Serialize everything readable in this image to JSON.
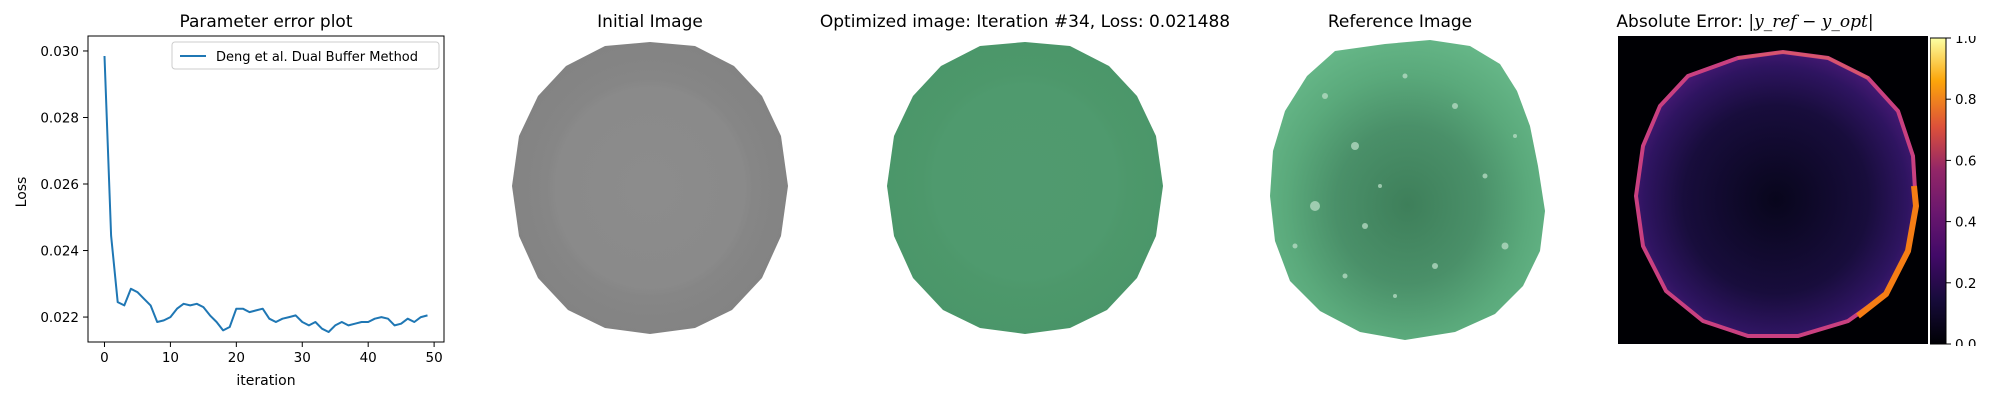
{
  "panels": {
    "plot_title": "Parameter error plot",
    "initial_title": "Initial Image",
    "optimized_title": "Optimized image: Iteration #34, Loss: 0.021488",
    "reference_title": "Reference Image",
    "error_title_prefix": "Absolute Error: ",
    "error_title_math": "|y_ref − y_opt|"
  },
  "colors": {
    "series": "#1f77b4",
    "initial_disc": "#8a8a8a",
    "optimized_disc": "#4f9a6e",
    "reference_disc": "#5cae7e"
  },
  "chart_data": {
    "type": "line",
    "xlabel": "iteration",
    "ylabel": "Loss",
    "xlim": [
      -2.5,
      51.5
    ],
    "ylim": [
      0.02125,
      0.03045
    ],
    "xticks": [
      0,
      10,
      20,
      30,
      40,
      50
    ],
    "yticks": [
      0.022,
      0.024,
      0.026,
      0.028,
      0.03
    ],
    "ytick_labels": [
      "0.022",
      "0.024",
      "0.026",
      "0.028",
      "0.030"
    ],
    "legend": "top-right",
    "series": [
      {
        "name": "Deng et al. Dual Buffer Method",
        "x": [
          0,
          1,
          2,
          3,
          4,
          5,
          6,
          7,
          8,
          9,
          10,
          11,
          12,
          13,
          14,
          15,
          16,
          17,
          18,
          19,
          20,
          21,
          22,
          23,
          24,
          25,
          26,
          27,
          28,
          29,
          30,
          31,
          32,
          33,
          34,
          35,
          36,
          37,
          38,
          39,
          40,
          41,
          42,
          43,
          44,
          45,
          46,
          47,
          48,
          49
        ],
        "y": [
          0.02985,
          0.02445,
          0.02245,
          0.02235,
          0.02285,
          0.02275,
          0.02255,
          0.02235,
          0.02185,
          0.0219,
          0.022,
          0.02225,
          0.0224,
          0.02235,
          0.0224,
          0.0223,
          0.02205,
          0.02185,
          0.0216,
          0.0217,
          0.02225,
          0.02225,
          0.02215,
          0.0222,
          0.02225,
          0.02195,
          0.02185,
          0.02195,
          0.022,
          0.02205,
          0.02185,
          0.02175,
          0.02185,
          0.02165,
          0.02155,
          0.02175,
          0.02185,
          0.02175,
          0.0218,
          0.02185,
          0.02185,
          0.02195,
          0.022,
          0.02195,
          0.02175,
          0.0218,
          0.02195,
          0.02185,
          0.022,
          0.02205
        ]
      }
    ]
  },
  "colorbar": {
    "vmin": 0.0,
    "vmax": 1.0,
    "ticks": [
      0.0,
      0.2,
      0.4,
      0.6,
      0.8,
      1.0
    ],
    "tick_labels": [
      "0.0",
      "0.2",
      "0.4",
      "0.6",
      "0.8",
      "1.0"
    ]
  }
}
